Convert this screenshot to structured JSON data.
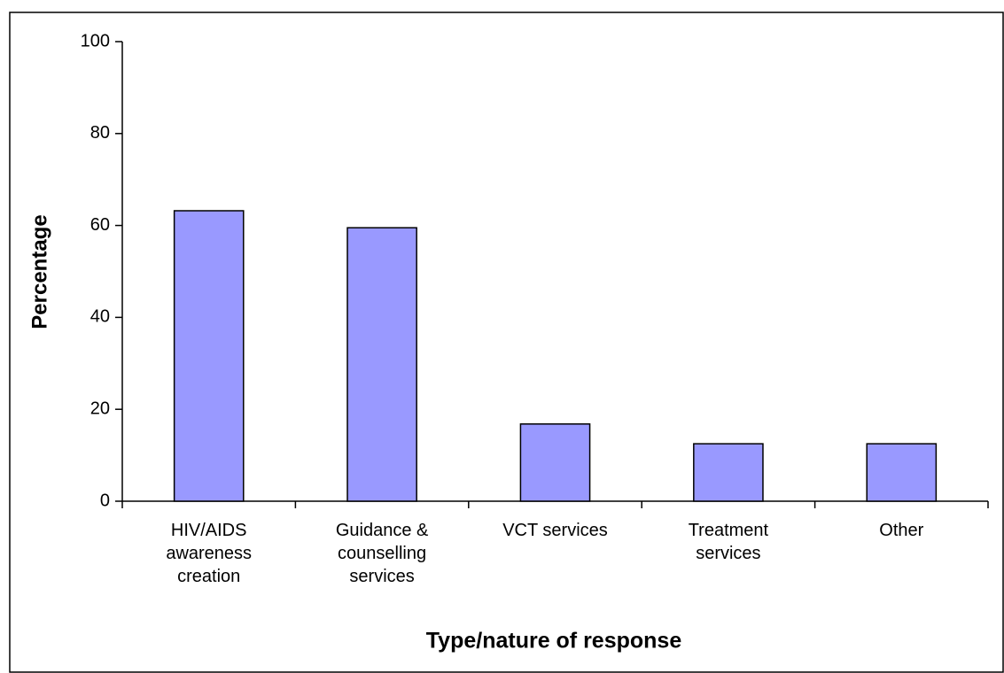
{
  "chart_data": {
    "type": "bar",
    "categories": [
      "HIV/AIDS awareness creation",
      "Guidance & counselling services",
      "VCT services",
      "Treatment services",
      "Other"
    ],
    "values": [
      63.2,
      59.5,
      16.8,
      12.5,
      12.5
    ],
    "color": "#9999ff",
    "ylim": [
      0,
      100
    ],
    "yticks": [
      0,
      20,
      40,
      60,
      80,
      100
    ],
    "ylabel": "Percentage",
    "xlabel": "Type/nature of response",
    "grid": false
  }
}
